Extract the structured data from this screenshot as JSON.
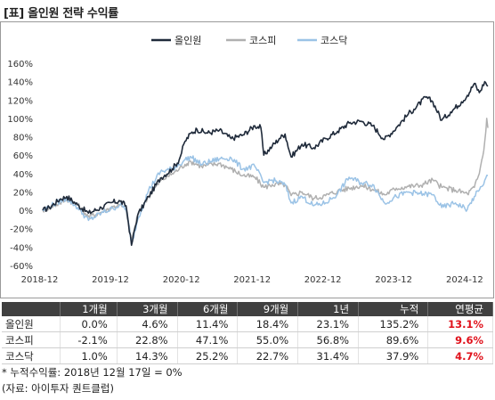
{
  "title": "[표] 올인원 전략 수익률",
  "chart_data": {
    "type": "line",
    "x_range": [
      "2018-12-17",
      "2025-03-31"
    ],
    "ylim": [
      -60,
      160
    ],
    "y_ticks": [
      "-60%",
      "-40%",
      "-20%",
      "0%",
      "20%",
      "40%",
      "60%",
      "80%",
      "100%",
      "120%",
      "140%",
      "160%"
    ],
    "y_tick_values": [
      -60,
      -40,
      -20,
      0,
      20,
      40,
      60,
      80,
      100,
      120,
      140,
      160
    ],
    "x_ticks": [
      "2018-12",
      "2019-12",
      "2020-12",
      "2021-12",
      "2022-12",
      "2023-12",
      "2024-12"
    ],
    "x_tick_dates": [
      "2018-12-01",
      "2019-12-01",
      "2020-12-01",
      "2021-12-01",
      "2022-12-01",
      "2023-12-01",
      "2024-12-01"
    ],
    "legend_position": "top-center",
    "series": [
      {
        "name": "올인원",
        "color": "#1f2a3a",
        "points": [
          [
            "2018-12-17",
            0
          ],
          [
            "2019-01-20",
            3
          ],
          [
            "2019-03-15",
            12
          ],
          [
            "2019-04-20",
            15
          ],
          [
            "2019-06-15",
            6
          ],
          [
            "2019-08-10",
            -3
          ],
          [
            "2019-10-15",
            3
          ],
          [
            "2019-12-15",
            9
          ],
          [
            "2020-01-20",
            10
          ],
          [
            "2020-02-20",
            5
          ],
          [
            "2020-03-19",
            -38
          ],
          [
            "2020-04-20",
            -5
          ],
          [
            "2020-06-15",
            15
          ],
          [
            "2020-08-15",
            35
          ],
          [
            "2020-10-15",
            45
          ],
          [
            "2020-11-20",
            55
          ],
          [
            "2020-12-20",
            75
          ],
          [
            "2021-01-20",
            84
          ],
          [
            "2021-02-20",
            88
          ],
          [
            "2021-04-15",
            84
          ],
          [
            "2021-06-15",
            87
          ],
          [
            "2021-08-15",
            78
          ],
          [
            "2021-10-15",
            82
          ],
          [
            "2021-12-15",
            92
          ],
          [
            "2022-01-15",
            90
          ],
          [
            "2022-01-30",
            60
          ],
          [
            "2022-03-15",
            70
          ],
          [
            "2022-04-20",
            78
          ],
          [
            "2022-05-20",
            83
          ],
          [
            "2022-06-20",
            58
          ],
          [
            "2022-08-15",
            72
          ],
          [
            "2022-10-15",
            68
          ],
          [
            "2022-12-15",
            78
          ],
          [
            "2023-02-15",
            86
          ],
          [
            "2023-04-15",
            95
          ],
          [
            "2023-06-15",
            97
          ],
          [
            "2023-08-15",
            92
          ],
          [
            "2023-10-15",
            77
          ],
          [
            "2023-12-15",
            90
          ],
          [
            "2024-02-15",
            105
          ],
          [
            "2024-03-15",
            110
          ],
          [
            "2024-05-15",
            123
          ],
          [
            "2024-06-20",
            118
          ],
          [
            "2024-08-05",
            98
          ],
          [
            "2024-09-20",
            107
          ],
          [
            "2024-11-15",
            118
          ],
          [
            "2024-12-15",
            125
          ],
          [
            "2025-01-20",
            138
          ],
          [
            "2025-02-15",
            128
          ],
          [
            "2025-03-15",
            140
          ],
          [
            "2025-03-31",
            135
          ]
        ]
      },
      {
        "name": "코스피",
        "color": "#b0b0b0",
        "points": [
          [
            "2018-12-17",
            0
          ],
          [
            "2019-01-20",
            3
          ],
          [
            "2019-03-15",
            8
          ],
          [
            "2019-04-20",
            12
          ],
          [
            "2019-06-15",
            6
          ],
          [
            "2019-08-10",
            -7
          ],
          [
            "2019-10-15",
            -2
          ],
          [
            "2019-12-15",
            4
          ],
          [
            "2020-01-20",
            6
          ],
          [
            "2020-02-20",
            0
          ],
          [
            "2020-03-19",
            -33
          ],
          [
            "2020-04-20",
            -5
          ],
          [
            "2020-06-15",
            15
          ],
          [
            "2020-08-15",
            32
          ],
          [
            "2020-10-15",
            40
          ],
          [
            "2020-11-20",
            45
          ],
          [
            "2020-12-20",
            50
          ],
          [
            "2021-01-20",
            53
          ],
          [
            "2021-03-15",
            48
          ],
          [
            "2021-06-15",
            51
          ],
          [
            "2021-08-15",
            45
          ],
          [
            "2021-10-15",
            38
          ],
          [
            "2021-12-15",
            36
          ],
          [
            "2022-01-30",
            25
          ],
          [
            "2022-03-15",
            28
          ],
          [
            "2022-05-20",
            28
          ],
          [
            "2022-06-20",
            16
          ],
          [
            "2022-08-15",
            20
          ],
          [
            "2022-10-15",
            13
          ],
          [
            "2022-12-15",
            16
          ],
          [
            "2023-02-15",
            21
          ],
          [
            "2023-04-15",
            24
          ],
          [
            "2023-06-15",
            27
          ],
          [
            "2023-08-15",
            23
          ],
          [
            "2023-10-15",
            17
          ],
          [
            "2023-12-15",
            24
          ],
          [
            "2024-02-15",
            26
          ],
          [
            "2024-04-15",
            27
          ],
          [
            "2024-06-20",
            33
          ],
          [
            "2024-08-05",
            25
          ],
          [
            "2024-10-15",
            22
          ],
          [
            "2024-12-15",
            18
          ],
          [
            "2025-01-20",
            25
          ],
          [
            "2025-02-15",
            40
          ],
          [
            "2025-02-28",
            55
          ],
          [
            "2025-03-10",
            65
          ],
          [
            "2025-03-20",
            85
          ],
          [
            "2025-03-25",
            100
          ],
          [
            "2025-03-31",
            89.6
          ]
        ]
      },
      {
        "name": "코스닥",
        "color": "#9bc3e6",
        "points": [
          [
            "2018-12-17",
            0
          ],
          [
            "2019-01-20",
            4
          ],
          [
            "2019-03-15",
            10
          ],
          [
            "2019-04-20",
            13
          ],
          [
            "2019-06-15",
            3
          ],
          [
            "2019-08-10",
            -11
          ],
          [
            "2019-10-15",
            -3
          ],
          [
            "2019-12-15",
            2
          ],
          [
            "2020-01-20",
            6
          ],
          [
            "2020-02-20",
            2
          ],
          [
            "2020-03-19",
            -37
          ],
          [
            "2020-04-20",
            -10
          ],
          [
            "2020-06-15",
            22
          ],
          [
            "2020-08-15",
            42
          ],
          [
            "2020-10-15",
            45
          ],
          [
            "2020-11-20",
            50
          ],
          [
            "2020-12-20",
            55
          ],
          [
            "2021-01-20",
            58
          ],
          [
            "2021-03-15",
            50
          ],
          [
            "2021-06-15",
            56
          ],
          [
            "2021-08-15",
            57
          ],
          [
            "2021-10-15",
            45
          ],
          [
            "2021-12-15",
            48
          ],
          [
            "2022-01-30",
            30
          ],
          [
            "2022-03-15",
            33
          ],
          [
            "2022-05-20",
            28
          ],
          [
            "2022-06-20",
            8
          ],
          [
            "2022-08-15",
            15
          ],
          [
            "2022-10-15",
            5
          ],
          [
            "2022-12-15",
            8
          ],
          [
            "2023-02-15",
            18
          ],
          [
            "2023-04-15",
            36
          ],
          [
            "2023-06-15",
            30
          ],
          [
            "2023-08-15",
            28
          ],
          [
            "2023-10-15",
            8
          ],
          [
            "2023-12-15",
            15
          ],
          [
            "2024-02-15",
            20
          ],
          [
            "2024-04-15",
            18
          ],
          [
            "2024-06-20",
            17
          ],
          [
            "2024-08-05",
            3
          ],
          [
            "2024-10-15",
            8
          ],
          [
            "2024-12-15",
            1
          ],
          [
            "2025-01-20",
            15
          ],
          [
            "2025-02-15",
            22
          ],
          [
            "2025-02-28",
            26
          ],
          [
            "2025-03-20",
            35
          ],
          [
            "2025-03-31",
            37.9
          ]
        ]
      }
    ]
  },
  "table": {
    "headers": [
      "",
      "1개월",
      "3개월",
      "6개월",
      "9개월",
      "1년",
      "누적",
      "연평균"
    ],
    "rows": [
      {
        "name": "올인원",
        "m1": "0.0%",
        "m3": "4.6%",
        "m6": "11.4%",
        "m9": "18.4%",
        "y1": "23.1%",
        "cum": "135.2%",
        "cagr": "13.1%"
      },
      {
        "name": "코스피",
        "m1": "-2.1%",
        "m3": "22.8%",
        "m6": "47.1%",
        "m9": "55.0%",
        "y1": "56.8%",
        "cum": "89.6%",
        "cagr": "9.6%"
      },
      {
        "name": "코스닥",
        "m1": "1.0%",
        "m3": "14.3%",
        "m6": "25.2%",
        "m9": "22.7%",
        "y1": "31.4%",
        "cum": "37.9%",
        "cagr": "4.7%"
      }
    ]
  },
  "footnotes": {
    "basis": "* 누적수익률: 2018년 12월 17일 = 0%",
    "source": "(자료: 아이투자 퀀트클럽)"
  }
}
